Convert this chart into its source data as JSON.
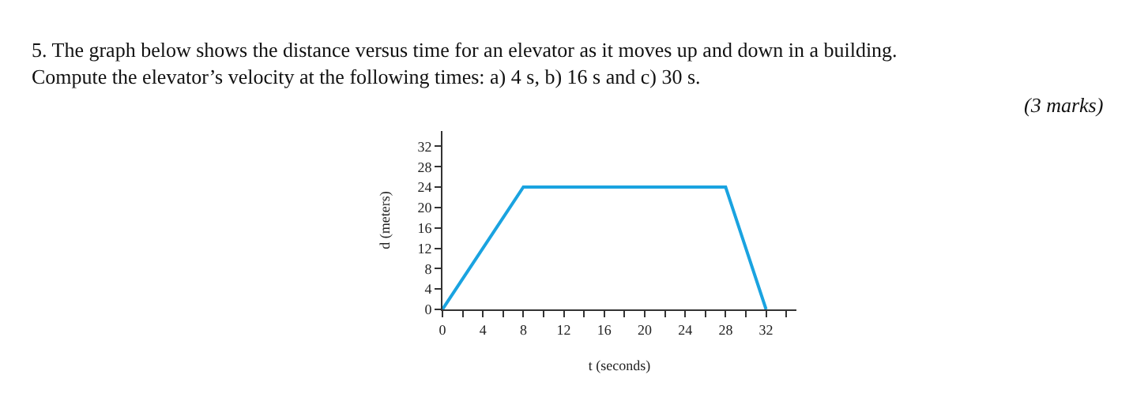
{
  "chart_data": {
    "type": "line",
    "title": "5. The graph below shows the distance versus time for an elevator as it moves up and down in a building.\nCompute the elevator’s velocity at the following times: a) 4 s, b) 16 s and c) 30 s.",
    "annotations": [
      "(3 marks)"
    ],
    "xlabel": "t (seconds)",
    "ylabel": "d (meters)",
    "series": [
      {
        "color": "#1aa3e0",
        "x": [
          0,
          8,
          28,
          32
        ],
        "values": [
          0,
          24,
          24,
          0
        ]
      }
    ],
    "xlim": [
      0,
      35
    ],
    "ylim": [
      0,
      35
    ],
    "xticks": [
      0,
      4,
      8,
      12,
      16,
      20,
      24,
      28,
      32
    ],
    "yticks": [
      0,
      4,
      8,
      12,
      16,
      20,
      24,
      28,
      32
    ],
    "marker": "none",
    "line_style": "solid"
  }
}
